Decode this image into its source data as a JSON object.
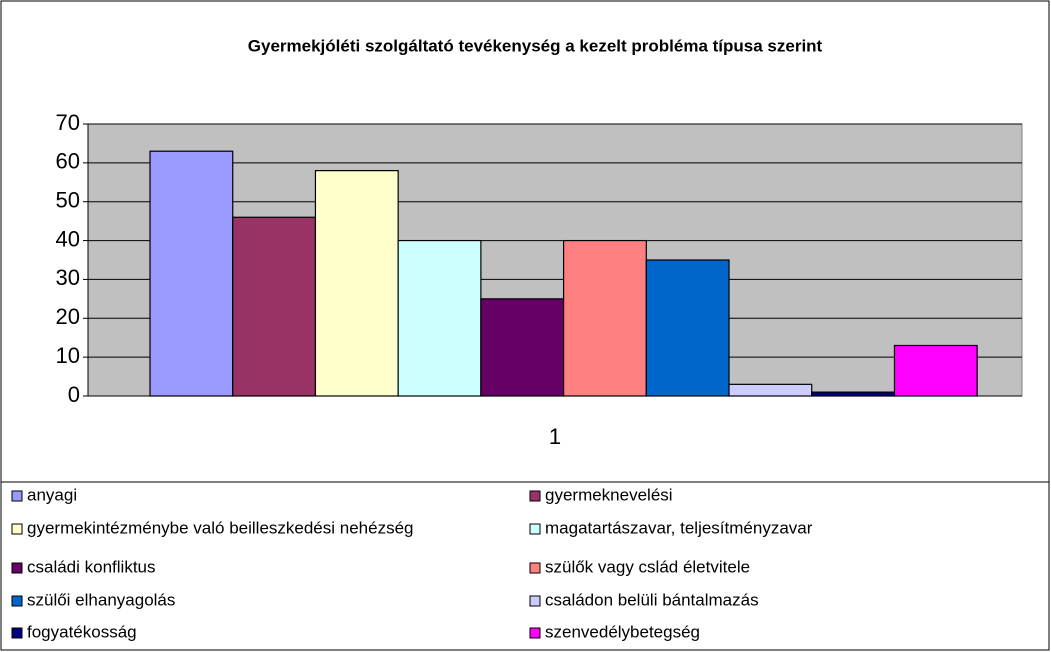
{
  "chart_data": {
    "type": "bar",
    "title": "Gyermekjóléti szolgáltató tevékenység a kezelt probléma típusa szerint",
    "categories": [
      "1"
    ],
    "series": [
      {
        "name": "anyagi",
        "color": "#9999ff",
        "values": [
          63
        ]
      },
      {
        "name": "gyermeknevelési",
        "color": "#993366",
        "values": [
          46
        ]
      },
      {
        "name": "gyermekintézménybe való beilleszkedési nehézség",
        "color": "#ffffcc",
        "values": [
          58
        ]
      },
      {
        "name": "magatartászavar, teljesítményzavar",
        "color": "#ccffff",
        "values": [
          40
        ]
      },
      {
        "name": "családi konfliktus",
        "color": "#660066",
        "values": [
          25
        ]
      },
      {
        "name": "szülők vagy cslád életvitele",
        "color": "#ff8080",
        "values": [
          40
        ]
      },
      {
        "name": "szülői elhanyagolás",
        "color": "#0066cc",
        "values": [
          35
        ]
      },
      {
        "name": "családon belüli bántalmazás",
        "color": "#ccccff",
        "values": [
          3
        ]
      },
      {
        "name": "fogyatékosság",
        "color": "#000080",
        "values": [
          1
        ]
      },
      {
        "name": "szenvedélybetegség",
        "color": "#ff00ff",
        "values": [
          13
        ]
      }
    ],
    "ylim": [
      0,
      70
    ],
    "yticks": [
      0,
      10,
      20,
      30,
      40,
      50,
      60,
      70
    ],
    "grid": true,
    "legend": "bottom"
  }
}
